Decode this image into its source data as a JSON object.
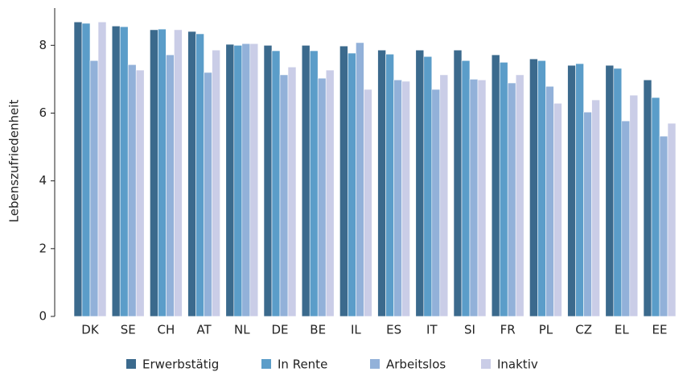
{
  "chart_data": {
    "type": "bar",
    "y_label": "Lebenszufriedenheit",
    "categories": [
      "DK",
      "SE",
      "CH",
      "AT",
      "NL",
      "DE",
      "BE",
      "IL",
      "ES",
      "IT",
      "SI",
      "FR",
      "PL",
      "CZ",
      "EL",
      "EE"
    ],
    "series": [
      {
        "name": "Erwerbstätig",
        "color": "#3b6a8d",
        "values": [
          8.69,
          8.57,
          8.46,
          8.41,
          8.03,
          8.0,
          8.0,
          7.98,
          7.86,
          7.86,
          7.86,
          7.72,
          7.6,
          7.41,
          7.41,
          6.98
        ]
      },
      {
        "name": "In Rente",
        "color": "#5b9dc9",
        "values": [
          8.65,
          8.55,
          8.48,
          8.34,
          8.0,
          7.84,
          7.84,
          7.77,
          7.74,
          7.67,
          7.55,
          7.5,
          7.55,
          7.46,
          7.32,
          6.46
        ]
      },
      {
        "name": "Arbeitslos",
        "color": "#92b1d9",
        "values": [
          7.55,
          7.43,
          7.72,
          7.2,
          8.05,
          7.13,
          7.03,
          8.08,
          6.98,
          6.7,
          7.0,
          6.89,
          6.79,
          6.03,
          5.77,
          5.32
        ]
      },
      {
        "name": "Inaktiv",
        "color": "#cacde7",
        "values": [
          8.69,
          7.27,
          8.46,
          7.86,
          8.05,
          7.36,
          7.27,
          6.7,
          6.94,
          7.13,
          6.98,
          7.13,
          6.29,
          6.39,
          6.53,
          5.7
        ]
      }
    ],
    "ylim": [
      0,
      9.1
    ],
    "yticks": [
      0,
      2,
      4,
      6,
      8
    ],
    "grid": false
  }
}
